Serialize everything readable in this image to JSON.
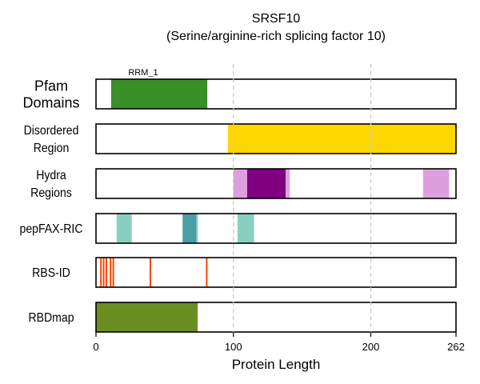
{
  "chart_data": {
    "type": "track",
    "title": "SRSF10",
    "subtitle": "(Serine/arginine-rich splicing factor 10)",
    "xlabel": "Protein Length",
    "xlim": [
      0,
      262
    ],
    "xticks": [
      "0",
      "100",
      "200",
      "262"
    ],
    "xtick_values": [
      0,
      100,
      200,
      262
    ],
    "grid_lines_x": [
      100,
      200
    ],
    "tracks": [
      {
        "label": [
          "Pfam",
          "Domains"
        ],
        "segments": [
          {
            "start": 11,
            "end": 81,
            "color": "#3a8f29",
            "label": "RRM_1"
          }
        ]
      },
      {
        "label": [
          "Disordered",
          "Region"
        ],
        "segments": [
          {
            "start": 96,
            "end": 262,
            "color": "#ffd700"
          }
        ]
      },
      {
        "label": [
          "Hydra",
          "Regions"
        ],
        "segments": [
          {
            "start": 100,
            "end": 110,
            "color": "#dda0dd"
          },
          {
            "start": 110,
            "end": 138,
            "color": "#800080"
          },
          {
            "start": 138,
            "end": 141,
            "color": "#dda0dd"
          },
          {
            "start": 238,
            "end": 257,
            "color": "#dda0dd"
          }
        ]
      },
      {
        "label": [
          "pepFAX-RIC"
        ],
        "segments": [
          {
            "start": 15,
            "end": 26,
            "color": "#88d1c0"
          },
          {
            "start": 63,
            "end": 73,
            "color": "#4a9fa5"
          },
          {
            "start": 73,
            "end": 74,
            "color": "#88d1c0"
          },
          {
            "start": 103,
            "end": 115,
            "color": "#88d1c0"
          }
        ]
      },
      {
        "label": [
          "RBS-ID"
        ],
        "segments": [
          {
            "start": 3,
            "end": 4,
            "color": "#ff4500"
          },
          {
            "start": 5,
            "end": 6,
            "color": "#ff4500"
          },
          {
            "start": 7,
            "end": 8,
            "color": "#ff4500"
          },
          {
            "start": 10,
            "end": 11,
            "color": "#ff4500"
          },
          {
            "start": 12,
            "end": 13,
            "color": "#ff4500"
          },
          {
            "start": 39,
            "end": 40,
            "color": "#ff4500"
          },
          {
            "start": 80,
            "end": 81,
            "color": "#ff4500"
          }
        ]
      },
      {
        "label": [
          "RBDmap"
        ],
        "segments": [
          {
            "start": 0,
            "end": 74,
            "color": "#6b8e23"
          }
        ]
      }
    ]
  }
}
